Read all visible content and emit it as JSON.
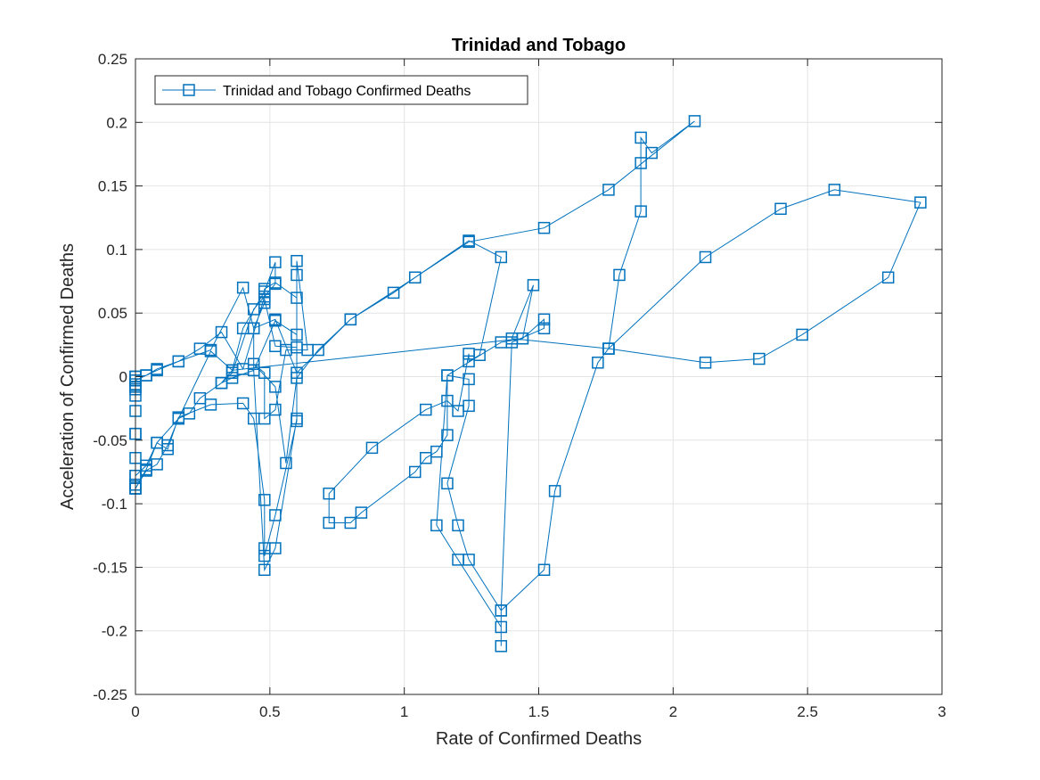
{
  "chart_data": {
    "type": "line",
    "title": "Trinidad and Tobago",
    "xlabel": "Rate of Confirmed Deaths",
    "ylabel": "Acceleration of Confirmed Deaths",
    "xlim": [
      0,
      3
    ],
    "ylim": [
      -0.25,
      0.25
    ],
    "xticks": [
      0,
      0.5,
      1,
      1.5,
      2,
      2.5,
      3
    ],
    "xtick_labels": [
      "0",
      "0.5",
      "1",
      "1.5",
      "2",
      "2.5",
      "3"
    ],
    "yticks": [
      -0.25,
      -0.2,
      -0.15,
      -0.1,
      -0.05,
      0,
      0.05,
      0.1,
      0.15,
      0.2,
      0.25
    ],
    "ytick_labels": [
      "-0.25",
      "-0.2",
      "-0.15",
      "-0.1",
      "-0.05",
      "0",
      "0.05",
      "0.1",
      "0.15",
      "0.2",
      "0.25"
    ],
    "grid": true,
    "legend_position": "top-left",
    "series": [
      {
        "name": "Trinidad and Tobago Confirmed Deaths",
        "color": "#0072BD",
        "marker": "square",
        "x": [
          0,
          0,
          0,
          0,
          0,
          0,
          0,
          0,
          0,
          0,
          0.04,
          0.08,
          0.12,
          0.16,
          0.2,
          0.24,
          0.32,
          0.36,
          0.4,
          0.48,
          0.52,
          0.52,
          0.44,
          0.36,
          0.32,
          0.36,
          0.44,
          0.52,
          0.6,
          0.6,
          0.52,
          0.48,
          0.48,
          0.44,
          0.4,
          0.28,
          0.16,
          0.08,
          0.04,
          0,
          0,
          0,
          0,
          0.04,
          0.08,
          0.12,
          0.16,
          0.28,
          0.4,
          0.44,
          0.48,
          0.48,
          0.48,
          0.52,
          0.6,
          0.6,
          0.6,
          0.64,
          0.56,
          0.52,
          0.48,
          0.48,
          0.44,
          0.52,
          0.56,
          0.6,
          0.68,
          0.8,
          0.96,
          1.04,
          1.24,
          1.36,
          1.28,
          1.24,
          1.24,
          1.2,
          1.16,
          1.08,
          0.88,
          0.72,
          0.72,
          0.8,
          0.84,
          1.04,
          1.08,
          1.12,
          1.16,
          1.16,
          1.24,
          1.24,
          1.16,
          1.2,
          1.24,
          1.36,
          1.4,
          1.52,
          1.52,
          1.44,
          1.36,
          1.16,
          1.12,
          1.2,
          1.36,
          1.36,
          1.36,
          1.52,
          1.56,
          1.72,
          1.76,
          1.8,
          1.88,
          1.88,
          1.88,
          1.92,
          2.08,
          1.76,
          1.52,
          1.24,
          1.04,
          0.8,
          0.6,
          0.52,
          0.44,
          0.44,
          0.48,
          0.52,
          0.6,
          0.6,
          0.52,
          0.48,
          0.48,
          0.4,
          0.32,
          0.24,
          0.16,
          0.08,
          0.04,
          0,
          0,
          0,
          0,
          0,
          0.04,
          0.08,
          0.16,
          0.28,
          0.36,
          1.44,
          1.48,
          1.4,
          1.76,
          2.12,
          2.4,
          2.6,
          2.92,
          2.8,
          2.48,
          2.32,
          2.12,
          1.76
        ],
        "y": [
          0,
          -0.003,
          -0.006,
          -0.01,
          -0.015,
          -0.027,
          -0.045,
          -0.064,
          -0.078,
          -0.088,
          -0.074,
          -0.069,
          -0.054,
          -0.033,
          -0.029,
          -0.017,
          -0.005,
          0.005,
          0.038,
          0.067,
          0.09,
          0.073,
          0.053,
          0.003,
          -0.005,
          -0.001,
          0.005,
          0.044,
          0.033,
          0.023,
          0.024,
          0.061,
          0.058,
          0.038,
          0.07,
          0.021,
          0.012,
          0.006,
          0.001,
          -0.003,
          -0.008,
          -0.085,
          -0.088,
          -0.073,
          -0.052,
          -0.057,
          -0.032,
          -0.022,
          -0.021,
          -0.033,
          -0.097,
          -0.135,
          -0.141,
          -0.109,
          -0.035,
          0.08,
          0.091,
          0.021,
          0.021,
          -0.026,
          -0.033,
          0.003,
          0.01,
          -0.008,
          -0.068,
          -0.001,
          0.021,
          0.045,
          0.066,
          0.078,
          0.107,
          0.094,
          0.017,
          0.012,
          0.018,
          -0.027,
          -0.019,
          -0.026,
          -0.056,
          -0.092,
          -0.115,
          -0.115,
          -0.107,
          -0.075,
          -0.064,
          -0.059,
          -0.046,
          0.001,
          -0.002,
          -0.023,
          -0.084,
          -0.117,
          -0.144,
          -0.184,
          0.027,
          0.038,
          0.045,
          0.03,
          0.027,
          0.001,
          -0.117,
          -0.144,
          -0.197,
          -0.212,
          -0.184,
          -0.152,
          -0.09,
          0.011,
          0.022,
          0.08,
          0.13,
          0.168,
          0.188,
          0.176,
          0.201,
          0.147,
          0.117,
          0.106,
          0.078,
          0.045,
          0.003,
          0.045,
          0.038,
          0.005,
          -0.152,
          -0.135,
          -0.033,
          0.062,
          0.074,
          0.069,
          0.063,
          0.006,
          0.035,
          0.022,
          0.012,
          0.005,
          0.001,
          0,
          -0.045,
          -0.085,
          -0.088,
          -0.078,
          -0.07,
          -0.052,
          -0.033,
          0.02,
          0.005,
          0.03,
          0.072,
          0.03,
          0.022,
          0.094,
          0.132,
          0.147,
          0.137,
          0.078,
          0.033,
          0.014,
          0.011,
          0.022
        ]
      }
    ]
  }
}
